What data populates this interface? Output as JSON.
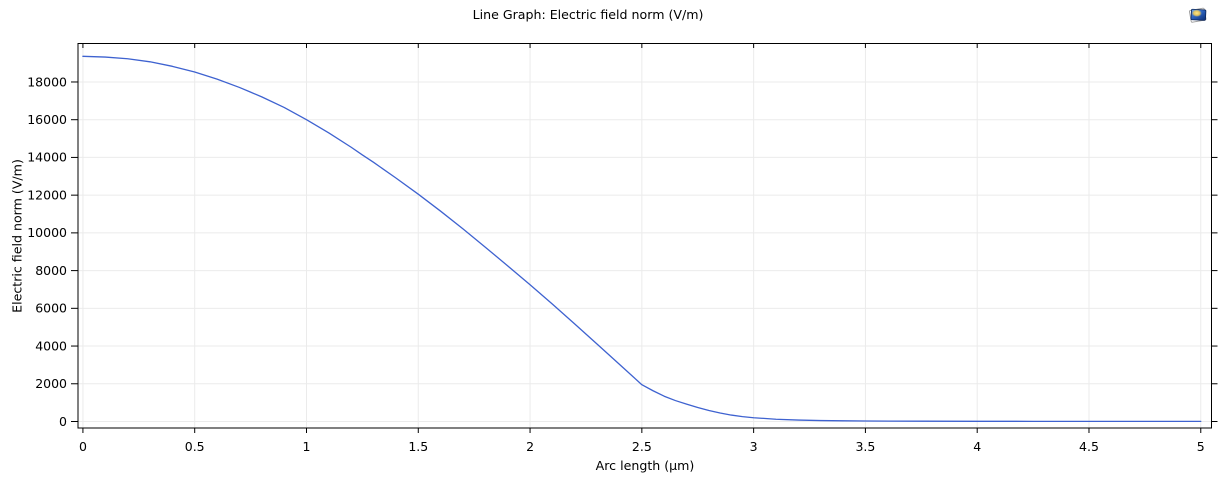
{
  "header": {
    "title": "Line Graph: Electric field norm (V/m)",
    "icon": "1d-plot-group-icon"
  },
  "chart_data": {
    "type": "line",
    "title": "Line Graph: Electric field norm (V/m)",
    "xlabel": "Arc length (µm)",
    "ylabel": "Electric field norm (V/m)",
    "xlim": [
      -0.022,
      5.048
    ],
    "ylim": [
      -345,
      20040
    ],
    "x_ticks": [
      0,
      0.5,
      1,
      1.5,
      2,
      2.5,
      3,
      3.5,
      4,
      4.5,
      5
    ],
    "x_tick_labels": [
      "0",
      "0.5",
      "1",
      "1.5",
      "2",
      "2.5",
      "3",
      "3.5",
      "4",
      "4.5",
      "5"
    ],
    "y_ticks": [
      0,
      2000,
      4000,
      6000,
      8000,
      10000,
      12000,
      14000,
      16000,
      18000
    ],
    "y_tick_labels": [
      "0",
      "2000",
      "4000",
      "6000",
      "8000",
      "10000",
      "12000",
      "14000",
      "16000",
      "18000"
    ],
    "grid": true,
    "legend": "none",
    "colors": {
      "line": "#3e62d0",
      "grid": "#ebebeb",
      "axis": "#000000",
      "background": "#ffffff"
    },
    "series": [
      {
        "name": "Electric field norm (V/m)",
        "x": [
          0.0,
          0.1,
          0.2,
          0.3,
          0.4,
          0.5,
          0.6,
          0.7,
          0.75,
          0.8,
          0.9,
          1.0,
          1.1,
          1.2,
          1.25,
          1.3,
          1.4,
          1.5,
          1.6,
          1.7,
          1.8,
          1.9,
          2.0,
          2.1,
          2.2,
          2.3,
          2.4,
          2.5,
          2.55,
          2.6,
          2.65,
          2.7,
          2.75,
          2.8,
          2.85,
          2.9,
          2.95,
          3.0,
          3.1,
          3.2,
          3.3,
          3.4,
          3.5,
          3.75,
          4.0,
          4.25,
          4.5,
          4.75,
          5.0
        ],
        "y": [
          19360,
          19320,
          19230,
          19070,
          18830,
          18530,
          18150,
          17710,
          17460,
          17210,
          16650,
          16000,
          15300,
          14540,
          14130,
          13740,
          12910,
          12050,
          11150,
          10210,
          9240,
          8250,
          7250,
          6220,
          5170,
          4100,
          3030,
          1950,
          1630,
          1340,
          1110,
          920,
          740,
          580,
          450,
          340,
          260,
          200,
          120,
          75,
          50,
          35,
          25,
          15,
          10,
          8,
          7,
          6,
          6
        ]
      }
    ]
  }
}
